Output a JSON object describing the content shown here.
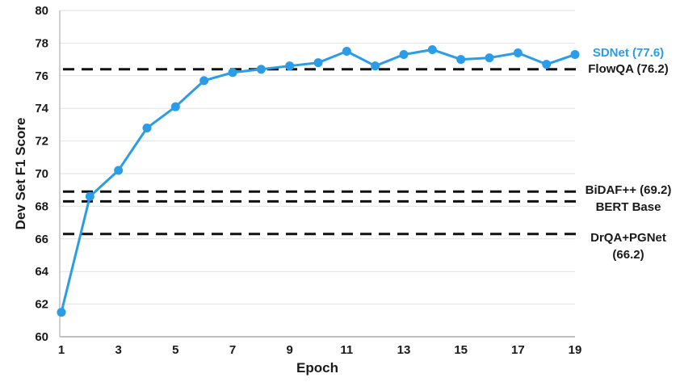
{
  "chart_data": {
    "type": "line",
    "title": "",
    "xlabel": "Epoch",
    "ylabel": "Dev Set F1 Score",
    "xlim": [
      1,
      19
    ],
    "ylim": [
      60,
      80
    ],
    "x_ticks": [
      1,
      3,
      5,
      7,
      9,
      11,
      13,
      15,
      17,
      19
    ],
    "y_ticks": [
      60,
      62,
      64,
      66,
      68,
      70,
      72,
      74,
      76,
      78,
      80
    ],
    "grid": "horizontal",
    "legend_position": "right-outside",
    "x": [
      1,
      2,
      3,
      4,
      5,
      6,
      7,
      8,
      9,
      10,
      11,
      12,
      13,
      14,
      15,
      16,
      17,
      18,
      19
    ],
    "series": [
      {
        "name": "SDNet",
        "label": "SDNet (77.6)",
        "best_value": 77.6,
        "color": "#2b9ce8",
        "values": [
          61.5,
          68.6,
          70.2,
          72.8,
          74.1,
          75.7,
          76.2,
          76.4,
          76.6,
          76.8,
          77.5,
          76.6,
          77.3,
          77.6,
          77.0,
          77.1,
          77.4,
          76.7,
          77.3
        ]
      }
    ],
    "baselines": [
      {
        "name": "FlowQA",
        "label": "FlowQA (76.2)",
        "value": 76.2,
        "line_y": 76.4
      },
      {
        "name": "BiDAF++",
        "label": "BiDAF++ (69.2)",
        "value": 69.2,
        "line_y": 68.9
      },
      {
        "name": "BERT Base",
        "label": "BERT Base",
        "value": "",
        "line_y": 68.3
      },
      {
        "name": "DrQA+PGNet",
        "label": "DrQA+PGNet",
        "label_line2": "(66.2)",
        "value": 66.2,
        "line_y": 66.3
      }
    ]
  },
  "colors": {
    "series_blue": "#2b9ce8",
    "baseline_dash": "#111111",
    "gridline": "#e2e2e2",
    "axis_line": "#c0c0c0",
    "tick_text": "#1a1a1a"
  }
}
